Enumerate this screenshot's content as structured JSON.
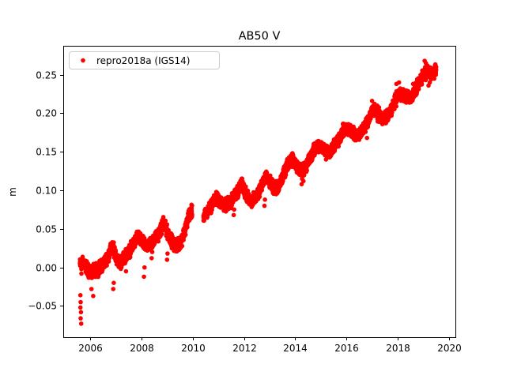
{
  "chart_data": {
    "type": "scatter",
    "title": "AB50 V",
    "xlabel": "",
    "ylabel": "m",
    "xlim": [
      2004.95,
      2020.25
    ],
    "ylim": [
      -0.0905,
      0.2875
    ],
    "xticks": [
      2006,
      2008,
      2010,
      2012,
      2014,
      2016,
      2018,
      2020
    ],
    "xtick_labels": [
      "2006",
      "2008",
      "2010",
      "2012",
      "2014",
      "2016",
      "2018",
      "2020"
    ],
    "yticks": [
      -0.05,
      0.0,
      0.05,
      0.1,
      0.15,
      0.2,
      0.25
    ],
    "ytick_labels": [
      "−0.05",
      "0.00",
      "0.05",
      "0.10",
      "0.15",
      "0.20",
      "0.25"
    ],
    "grid": false,
    "legend": {
      "position": "top-left",
      "entries": [
        "repro2018a (IGS14)"
      ]
    },
    "series": [
      {
        "name": "repro2018a (IGS14)",
        "color": "#ff0000",
        "marker": "filled-circle",
        "time_range": [
          2005.6,
          2019.5
        ],
        "trend_points": [
          [
            2005.6,
            0.004
          ],
          [
            2005.75,
            0.006
          ],
          [
            2005.9,
            -0.002
          ],
          [
            2006.0,
            -0.008
          ],
          [
            2006.15,
            -0.004
          ],
          [
            2006.3,
            -0.002
          ],
          [
            2006.5,
            0.004
          ],
          [
            2006.7,
            0.015
          ],
          [
            2006.85,
            0.026
          ],
          [
            2006.95,
            0.022
          ],
          [
            2007.05,
            0.01
          ],
          [
            2007.2,
            0.006
          ],
          [
            2007.35,
            0.014
          ],
          [
            2007.55,
            0.022
          ],
          [
            2007.75,
            0.034
          ],
          [
            2007.85,
            0.04
          ],
          [
            2007.95,
            0.036
          ],
          [
            2008.1,
            0.03
          ],
          [
            2008.25,
            0.028
          ],
          [
            2008.4,
            0.032
          ],
          [
            2008.6,
            0.04
          ],
          [
            2008.75,
            0.048
          ],
          [
            2008.85,
            0.058
          ],
          [
            2008.95,
            0.05
          ],
          [
            2009.1,
            0.04
          ],
          [
            2009.25,
            0.03
          ],
          [
            2009.45,
            0.028
          ],
          [
            2009.6,
            0.038
          ],
          [
            2009.75,
            0.055
          ],
          [
            2009.85,
            0.068
          ],
          [
            2009.95,
            0.072
          ],
          [
            2010.45,
            0.066
          ],
          [
            2010.6,
            0.073
          ],
          [
            2010.75,
            0.082
          ],
          [
            2010.9,
            0.09
          ],
          [
            2011.05,
            0.086
          ],
          [
            2011.25,
            0.08
          ],
          [
            2011.45,
            0.084
          ],
          [
            2011.6,
            0.09
          ],
          [
            2011.75,
            0.098
          ],
          [
            2011.9,
            0.108
          ],
          [
            2012.0,
            0.102
          ],
          [
            2012.15,
            0.09
          ],
          [
            2012.3,
            0.086
          ],
          [
            2012.45,
            0.09
          ],
          [
            2012.6,
            0.1
          ],
          [
            2012.75,
            0.112
          ],
          [
            2012.9,
            0.116
          ],
          [
            2013.05,
            0.108
          ],
          [
            2013.2,
            0.102
          ],
          [
            2013.35,
            0.104
          ],
          [
            2013.5,
            0.116
          ],
          [
            2013.65,
            0.13
          ],
          [
            2013.8,
            0.14
          ],
          [
            2013.95,
            0.138
          ],
          [
            2014.1,
            0.13
          ],
          [
            2014.25,
            0.126
          ],
          [
            2014.4,
            0.13
          ],
          [
            2014.55,
            0.14
          ],
          [
            2014.7,
            0.15
          ],
          [
            2014.9,
            0.158
          ],
          [
            2015.05,
            0.156
          ],
          [
            2015.2,
            0.152
          ],
          [
            2015.35,
            0.15
          ],
          [
            2015.55,
            0.158
          ],
          [
            2015.7,
            0.166
          ],
          [
            2015.85,
            0.176
          ],
          [
            2016.0,
            0.18
          ],
          [
            2016.2,
            0.176
          ],
          [
            2016.4,
            0.172
          ],
          [
            2016.6,
            0.176
          ],
          [
            2016.8,
            0.188
          ],
          [
            2016.95,
            0.2
          ],
          [
            2017.1,
            0.204
          ],
          [
            2017.25,
            0.198
          ],
          [
            2017.45,
            0.192
          ],
          [
            2017.65,
            0.198
          ],
          [
            2017.8,
            0.208
          ],
          [
            2017.95,
            0.22
          ],
          [
            2018.1,
            0.226
          ],
          [
            2018.3,
            0.222
          ],
          [
            2018.5,
            0.22
          ],
          [
            2018.7,
            0.23
          ],
          [
            2018.9,
            0.244
          ],
          [
            2019.05,
            0.252
          ],
          [
            2019.2,
            0.254
          ],
          [
            2019.35,
            0.253
          ],
          [
            2019.5,
            0.256
          ]
        ],
        "outliers": [
          [
            2005.62,
            -0.036
          ],
          [
            2005.63,
            -0.045
          ],
          [
            2005.62,
            -0.052
          ],
          [
            2005.64,
            -0.058
          ],
          [
            2005.63,
            -0.066
          ],
          [
            2005.65,
            -0.073
          ],
          [
            2005.66,
            -0.008
          ],
          [
            2006.05,
            -0.028
          ],
          [
            2006.12,
            -0.037
          ],
          [
            2006.9,
            -0.028
          ],
          [
            2006.92,
            -0.02
          ],
          [
            2007.4,
            -0.005
          ],
          [
            2008.1,
            -0.012
          ],
          [
            2008.12,
            0.0
          ],
          [
            2008.4,
            0.012
          ],
          [
            2008.42,
            0.02
          ],
          [
            2009.0,
            0.01
          ],
          [
            2009.02,
            0.018
          ],
          [
            2011.6,
            0.068
          ],
          [
            2011.62,
            0.075
          ],
          [
            2012.7,
            0.1
          ],
          [
            2012.72,
            0.105
          ],
          [
            2012.8,
            0.08
          ],
          [
            2012.82,
            0.088
          ],
          [
            2014.25,
            0.108
          ],
          [
            2014.27,
            0.115
          ],
          [
            2014.32,
            0.112
          ],
          [
            2015.2,
            0.14
          ],
          [
            2015.22,
            0.145
          ],
          [
            2016.8,
            0.168
          ],
          [
            2017.0,
            0.216
          ],
          [
            2017.05,
            0.21
          ],
          [
            2017.95,
            0.238
          ],
          [
            2018.05,
            0.24
          ],
          [
            2018.4,
            0.228
          ],
          [
            2018.6,
            0.238
          ],
          [
            2019.05,
            0.268
          ],
          [
            2019.1,
            0.265
          ],
          [
            2019.2,
            0.236
          ],
          [
            2019.25,
            0.24
          ],
          [
            2019.45,
            0.262
          ],
          [
            2019.5,
            0.26
          ]
        ]
      }
    ]
  }
}
